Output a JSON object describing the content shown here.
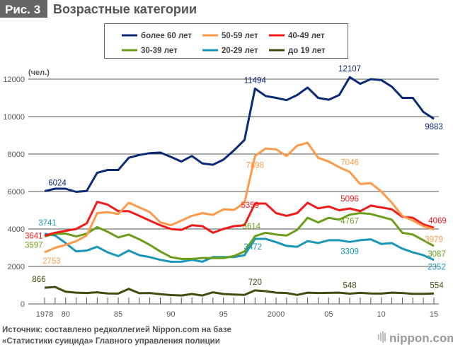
{
  "header": {
    "fig_label": "Рис. 3",
    "title": "Возрастные категории"
  },
  "footer": {
    "source_line1": "Источник: составлено редколлегией Nippon.com на базе",
    "source_line2": "«Статистики суицида» Главного управления полиции",
    "logo": "nippon.com"
  },
  "chart_data": {
    "type": "line",
    "title": "Возрастные категории",
    "unit_label": "(чел.)",
    "ylim": [
      0,
      12000
    ],
    "yticks": [
      0,
      2000,
      4000,
      6000,
      8000,
      10000,
      12000
    ],
    "xlim": [
      1978,
      2015
    ],
    "xtick_labels": [
      {
        "year": 1978,
        "label": "1978"
      },
      {
        "year": 1980,
        "label": "80"
      },
      {
        "year": 1985,
        "label": "85"
      },
      {
        "year": 1990,
        "label": "90"
      },
      {
        "year": 1995,
        "label": "95"
      },
      {
        "year": 2000,
        "label": "2000"
      },
      {
        "year": 2005,
        "label": "05"
      },
      {
        "year": 2010,
        "label": "10"
      },
      {
        "year": 2015,
        "label": "15"
      }
    ],
    "grid": true,
    "legend_placement": "top-center",
    "x": [
      1978,
      1979,
      1980,
      1981,
      1982,
      1983,
      1984,
      1985,
      1986,
      1987,
      1988,
      1989,
      1990,
      1991,
      1992,
      1993,
      1994,
      1995,
      1996,
      1997,
      1998,
      1999,
      2000,
      2001,
      2002,
      2003,
      2004,
      2005,
      2006,
      2007,
      2008,
      2009,
      2010,
      2011,
      2012,
      2013,
      2014,
      2015
    ],
    "series": [
      {
        "name": "более 60 лет",
        "color": "#0a2a78",
        "values": [
          6024,
          6150,
          6150,
          5980,
          6030,
          7000,
          7150,
          7150,
          7800,
          7950,
          8050,
          8080,
          7850,
          7600,
          7900,
          7500,
          7430,
          7700,
          8200,
          8750,
          11494,
          11100,
          11000,
          10880,
          11150,
          11550,
          11000,
          10900,
          11150,
          12107,
          11750,
          12000,
          11950,
          11600,
          11000,
          11000,
          10250,
          9883
        ],
        "labels": [
          {
            "year": 1978,
            "text": "6024"
          },
          {
            "year": 1998,
            "text": "11494"
          },
          {
            "year": 2007,
            "text": "12107"
          },
          {
            "year": 2015,
            "text": "9883"
          }
        ]
      },
      {
        "name": "50-59 лет",
        "color": "#ff9a4a",
        "values": [
          2753,
          3000,
          3150,
          3350,
          3650,
          4850,
          4900,
          4800,
          5400,
          5150,
          4900,
          4350,
          4200,
          4450,
          4700,
          4850,
          4750,
          5050,
          5020,
          5400,
          7898,
          8300,
          8250,
          7900,
          8450,
          8600,
          7800,
          7600,
          7300,
          7046,
          6400,
          6450,
          6000,
          5400,
          4700,
          4450,
          4150,
          3979
        ],
        "labels": [
          {
            "year": 1978,
            "text": "2753"
          },
          {
            "year": 1998,
            "text": "7898"
          },
          {
            "year": 2007,
            "text": "7046"
          },
          {
            "year": 2015,
            "text": "3979"
          }
        ]
      },
      {
        "name": "40-49 лет",
        "color": "#f21a1a",
        "values": [
          3641,
          3800,
          3900,
          4000,
          4300,
          5450,
          5300,
          4950,
          4950,
          4700,
          4450,
          4200,
          4000,
          3950,
          4200,
          4150,
          3800,
          4000,
          4150,
          4200,
          5359,
          5359,
          4850,
          4700,
          4850,
          5400,
          5100,
          5200,
          5000,
          5096,
          4950,
          5250,
          5150,
          5050,
          4650,
          4600,
          4250,
          4069
        ],
        "labels": [
          {
            "year": 1978,
            "text": "3641"
          },
          {
            "year": 1998,
            "text": "5359"
          },
          {
            "year": 2007,
            "text": "5096"
          },
          {
            "year": 2015,
            "text": "4069"
          }
        ]
      },
      {
        "name": "30-39 лет",
        "color": "#6a9e1a",
        "values": [
          3597,
          3750,
          3750,
          3600,
          3750,
          4100,
          3850,
          3550,
          3700,
          3450,
          3150,
          2800,
          2500,
          2400,
          2400,
          2450,
          2450,
          2450,
          2550,
          2800,
          3614,
          3800,
          3700,
          3650,
          3950,
          4600,
          4350,
          4600,
          4500,
          4767,
          4850,
          4800,
          4650,
          4500,
          3800,
          3700,
          3400,
          3087
        ],
        "labels": [
          {
            "year": 1978,
            "text": "3597"
          },
          {
            "year": 1998,
            "text": "3614"
          },
          {
            "year": 2007,
            "text": "4767"
          },
          {
            "year": 2015,
            "text": "3087"
          }
        ]
      },
      {
        "name": "20-29 лет",
        "color": "#1a96b8",
        "values": [
          3741,
          3650,
          3250,
          2800,
          2850,
          3050,
          2750,
          2550,
          2850,
          2600,
          2500,
          2350,
          2250,
          2250,
          2350,
          2250,
          2500,
          2500,
          2500,
          2600,
          3472,
          3472,
          3300,
          3100,
          3050,
          3350,
          3250,
          3400,
          3400,
          3309,
          3400,
          3450,
          3200,
          3250,
          2950,
          2750,
          2600,
          2352
        ],
        "labels": [
          {
            "year": 1978,
            "text": "3741"
          },
          {
            "year": 1998,
            "text": "3472"
          },
          {
            "year": 2007,
            "text": "3309"
          },
          {
            "year": 2015,
            "text": "2352"
          }
        ]
      },
      {
        "name": "до 19 лет",
        "color": "#464a10",
        "values": [
          866,
          900,
          650,
          600,
          580,
          620,
          560,
          550,
          800,
          570,
          580,
          520,
          470,
          450,
          530,
          450,
          620,
          530,
          500,
          480,
          720,
          680,
          600,
          580,
          480,
          600,
          580,
          590,
          600,
          548,
          590,
          560,
          550,
          600,
          580,
          540,
          540,
          554
        ],
        "labels": [
          {
            "year": 1978,
            "text": "866"
          },
          {
            "year": 1998,
            "text": "720"
          },
          {
            "year": 2007,
            "text": "548"
          },
          {
            "year": 2015,
            "text": "554"
          }
        ]
      }
    ]
  }
}
